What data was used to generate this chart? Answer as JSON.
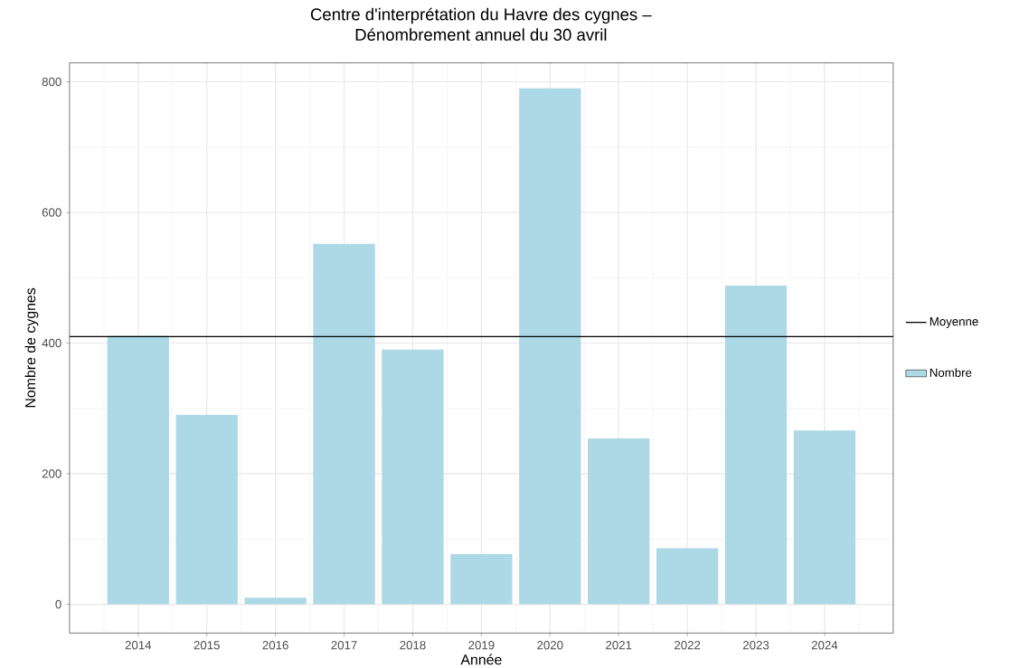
{
  "chart_data": {
    "type": "bar",
    "title": "Centre d'interprétation du Havre des cygnes –\nDénombrement annuel du 30 avril",
    "xlabel": "Année",
    "ylabel": "Nombre de cygnes",
    "categories": [
      "2014",
      "2015",
      "2016",
      "2017",
      "2018",
      "2019",
      "2020",
      "2021",
      "2022",
      "2023",
      "2024"
    ],
    "series": [
      {
        "name": "Nombre",
        "color": "#add8e6",
        "values": [
          411,
          290,
          10,
          552,
          390,
          77,
          790,
          254,
          86,
          488,
          266
        ]
      }
    ],
    "ylim": [
      -44,
      829
    ],
    "yticks": [
      0,
      200,
      400,
      600,
      800
    ],
    "ref_lines": [
      {
        "axis": "y",
        "value": 410,
        "label": "Moyenne",
        "color": "#000000",
        "line_style": "solid"
      }
    ],
    "grid": true,
    "legend": "right"
  }
}
